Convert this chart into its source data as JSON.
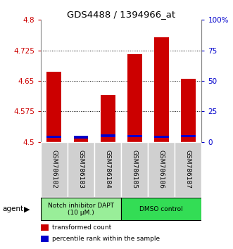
{
  "title": "GDS4488 / 1394966_at",
  "samples": [
    "GSM786182",
    "GSM786183",
    "GSM786184",
    "GSM786185",
    "GSM786186",
    "GSM786187"
  ],
  "red_values": [
    4.672,
    4.508,
    4.615,
    4.715,
    4.757,
    4.655
  ],
  "blue_values": [
    4.513,
    4.512,
    4.515,
    4.514,
    4.513,
    4.514
  ],
  "red_base": 4.5,
  "ylim": [
    4.5,
    4.8
  ],
  "yticks": [
    4.5,
    4.575,
    4.65,
    4.725,
    4.8
  ],
  "ytick_labels": [
    "4.5",
    "4.575",
    "4.65",
    "4.725",
    "4.8"
  ],
  "y2lim": [
    0,
    100
  ],
  "y2ticks": [
    0,
    25,
    50,
    75,
    100
  ],
  "y2tick_labels": [
    "0",
    "25",
    "50",
    "75",
    "100%"
  ],
  "groups": [
    {
      "label": "Notch inhibitor DAPT\n(10 μM.)",
      "samples_idx": [
        0,
        1,
        2
      ],
      "color": "#99EE99"
    },
    {
      "label": "DMSO control",
      "samples_idx": [
        3,
        4,
        5
      ],
      "color": "#33DD55"
    }
  ],
  "agent_label": "agent",
  "legend_items": [
    {
      "label": "transformed count",
      "color": "#CC0000"
    },
    {
      "label": "percentile rank within the sample",
      "color": "#0000CC"
    }
  ],
  "bar_width": 0.55,
  "red_color": "#CC0000",
  "blue_color": "#0000CC",
  "blue_bar_height": 0.006,
  "background_color": "#FFFFFF",
  "plot_bg": "#FFFFFF",
  "left_tick_color": "#CC0000",
  "right_tick_color": "#0000CC",
  "sample_label_bg": "#D0D0D0",
  "group_box_border": "#000000"
}
